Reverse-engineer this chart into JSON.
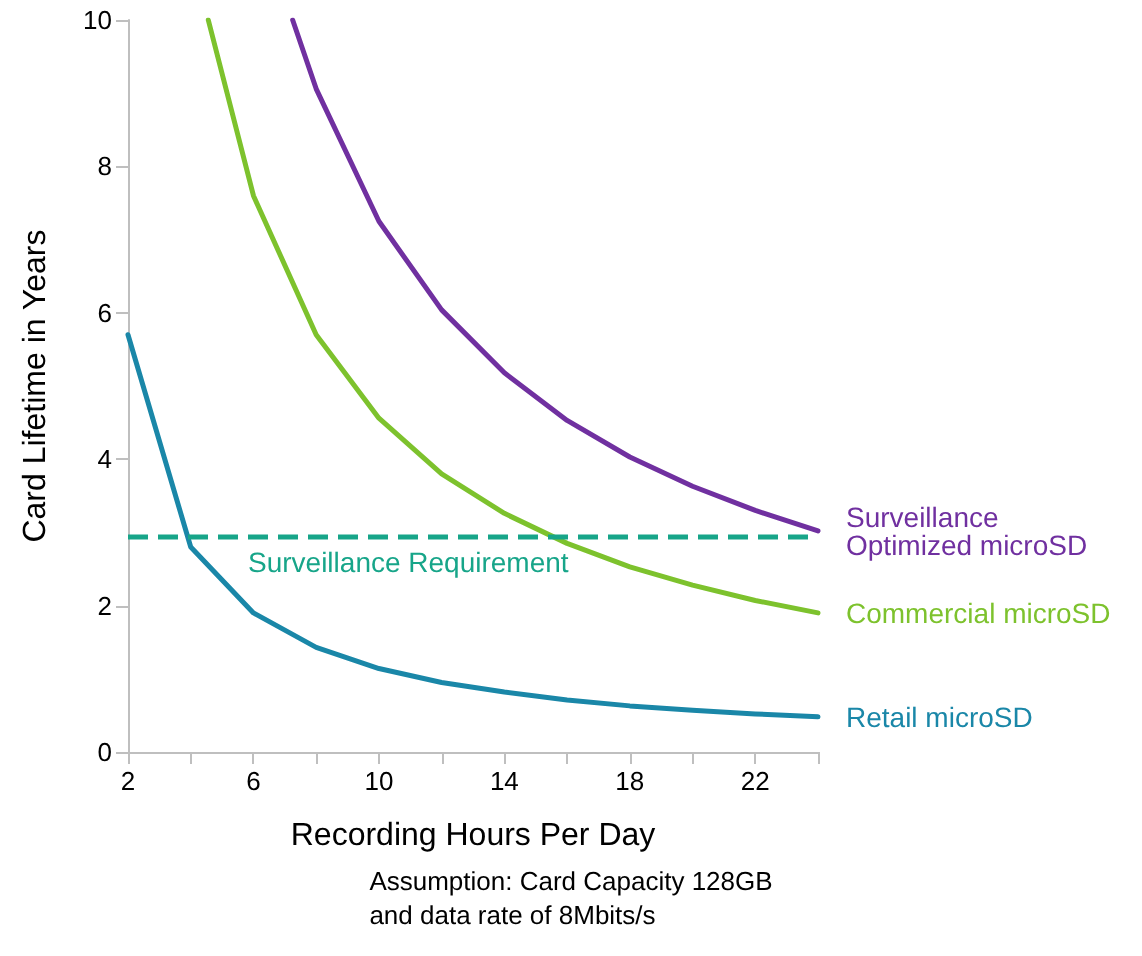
{
  "chart_data": {
    "type": "line",
    "xlabel": "Recording Hours Per Day",
    "ylabel": "Card Lifetime in Years",
    "series": [
      {
        "name": "Surveillance Optimized microSD",
        "color": "#7030a0",
        "x": [
          7.25,
          8,
          10,
          12,
          14,
          16,
          18,
          20,
          22,
          24
        ],
        "values": [
          10,
          9.06,
          7.25,
          6.04,
          5.18,
          4.53,
          4.03,
          3.63,
          3.3,
          3.02
        ]
      },
      {
        "name": "Commercial microSD",
        "color": "#7dc22d",
        "x": [
          4.56,
          6,
          8,
          10,
          12,
          14,
          16,
          18,
          20,
          22,
          24
        ],
        "values": [
          10,
          7.6,
          5.7,
          4.56,
          3.8,
          3.26,
          2.85,
          2.53,
          2.28,
          2.07,
          1.9
        ]
      },
      {
        "name": "Retail microSD",
        "color": "#1a87a8",
        "x": [
          2,
          4,
          6,
          8,
          10,
          12,
          14,
          16,
          18,
          20,
          22,
          24
        ],
        "values": [
          5.7,
          2.8,
          1.9,
          1.43,
          1.14,
          0.95,
          0.82,
          0.71,
          0.63,
          0.57,
          0.52,
          0.48
        ]
      }
    ],
    "xlim": [
      2,
      24
    ],
    "xticks": [
      2,
      {
        "value": 4,
        "label": null
      },
      6,
      {
        "value": 8,
        "label": null
      },
      10,
      {
        "value": 12,
        "label": null
      },
      14,
      {
        "value": 16,
        "label": null
      },
      18,
      {
        "value": 20,
        "label": null
      },
      22,
      {
        "value": 24,
        "label": null
      }
    ],
    "ylim": [
      0,
      10
    ],
    "yticks": [
      0,
      2,
      4,
      6,
      8,
      10
    ],
    "ref_lines": [
      {
        "axis": "y",
        "value": 2.95,
        "label": "Surveillance Requirement",
        "color": "#17a589",
        "line_style": "dashed"
      }
    ],
    "annotations": [
      "Assumption: Card Capacity 128GB\nand data rate of 8Mbits/s"
    ],
    "grid": false,
    "legend": false,
    "marker": "none",
    "line_style": "solid"
  }
}
